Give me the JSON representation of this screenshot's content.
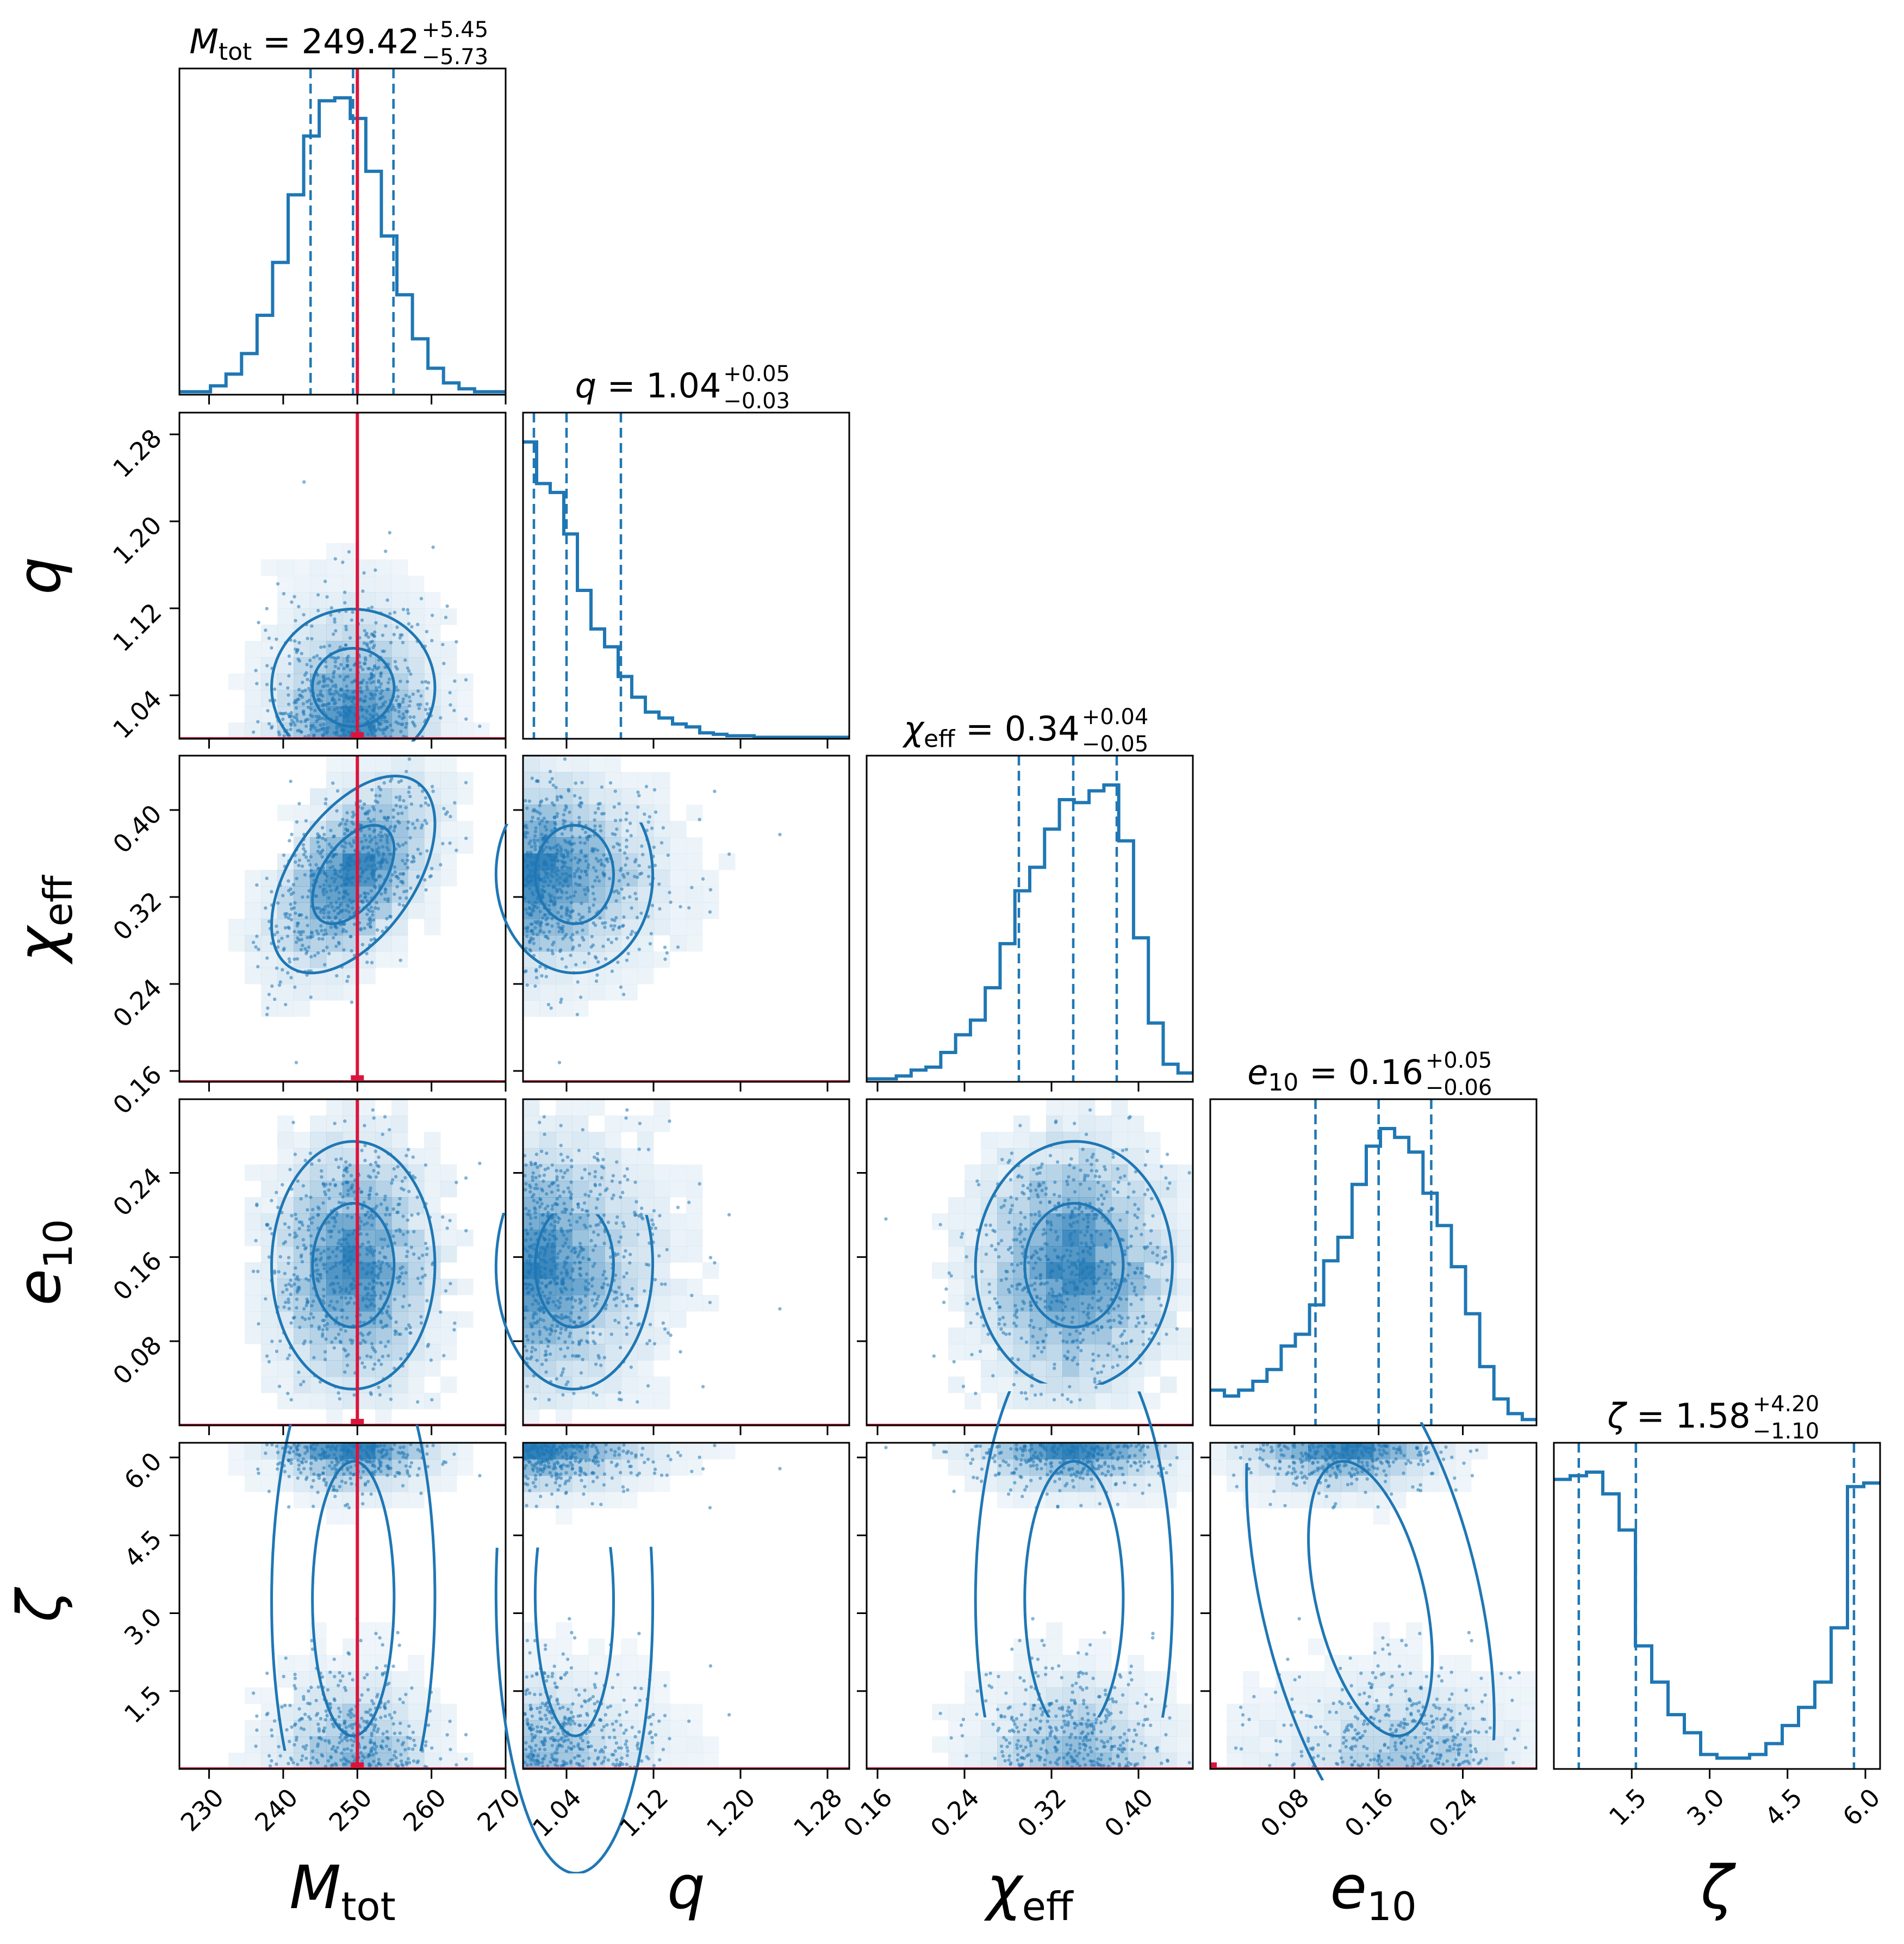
{
  "chart_data": {
    "type": "corner",
    "title": "",
    "params": [
      {
        "key": "mtot",
        "symbol": "M",
        "sub": "tot",
        "italic": true,
        "title_pre": "M",
        "title_sub": "tot",
        "title_value": "249.42",
        "title_plus": "+5.45",
        "title_minus": "−5.73",
        "range": [
          226,
          270
        ],
        "ticks": [
          230,
          240,
          250,
          260,
          270
        ],
        "tick_labels": [
          "230",
          "240",
          "250",
          "260",
          "270"
        ],
        "median": 249.42,
        "q16": 243.69,
        "q84": 254.87,
        "truth": 250,
        "hist": [
          1,
          1,
          3,
          7,
          14,
          27,
          45,
          68,
          88,
          100,
          101,
          94,
          76,
          54,
          34,
          19,
          9,
          4,
          2,
          1,
          1
        ]
      },
      {
        "key": "q",
        "symbol": "q",
        "sub": "",
        "italic": true,
        "title_pre": "q",
        "title_sub": "",
        "title_value": "1.04",
        "title_plus": "+0.05",
        "title_minus": "−0.03",
        "range": [
          1.0,
          1.3
        ],
        "ticks": [
          1.04,
          1.12,
          1.2,
          1.28
        ],
        "tick_labels": [
          "1.04",
          "1.12",
          "1.20",
          "1.28"
        ],
        "median": 1.04,
        "q16": 1.01,
        "q84": 1.09,
        "truth": null,
        "hist": [
          100,
          86,
          83,
          69,
          50,
          37,
          31,
          21,
          14,
          9,
          7,
          5,
          4,
          2,
          1.5,
          1,
          1,
          0.5,
          0.5,
          0.5,
          0.5,
          0.5,
          0.5,
          0.5
        ]
      },
      {
        "key": "chi",
        "symbol": "χ",
        "sub": "eff",
        "italic": true,
        "title_pre": "χ",
        "title_sub": "eff",
        "title_value": "0.34",
        "title_plus": "+0.04",
        "title_minus": "−0.05",
        "range": [
          0.15,
          0.45
        ],
        "ticks": [
          0.16,
          0.24,
          0.32,
          0.4
        ],
        "tick_labels": [
          "0.16",
          "0.24",
          "0.32",
          "0.40"
        ],
        "median": 0.34,
        "q16": 0.29,
        "q84": 0.38,
        "truth": null,
        "hist": [
          1,
          1,
          2,
          4,
          5,
          10,
          16,
          21,
          32,
          47,
          65,
          73,
          86,
          96,
          95,
          99,
          101,
          82,
          49,
          20,
          6,
          3
        ]
      },
      {
        "key": "e10",
        "symbol": "e",
        "sub": "10",
        "italic": true,
        "title_pre": "e",
        "title_sub": "10",
        "title_value": "0.16",
        "title_plus": "+0.05",
        "title_minus": "−0.06",
        "range": [
          0.0,
          0.31
        ],
        "ticks": [
          0.08,
          0.16,
          0.24
        ],
        "tick_labels": [
          "0.08",
          "0.16",
          "0.24"
        ],
        "median": 0.16,
        "q16": 0.1,
        "q84": 0.21,
        "truth": 0.0,
        "hist": [
          12,
          10,
          12,
          15,
          19,
          27,
          31,
          41,
          56,
          64,
          82,
          95,
          101,
          98,
          93,
          79,
          68,
          54,
          38,
          20,
          9,
          4,
          2
        ]
      },
      {
        "key": "zeta",
        "symbol": "ζ",
        "sub": "",
        "italic": true,
        "title_pre": "ζ",
        "title_sub": "",
        "title_value": "1.58",
        "title_plus": "+4.20",
        "title_minus": "−1.10",
        "range": [
          0.0,
          6.283
        ],
        "ticks": [
          1.5,
          3.0,
          4.5,
          6.0
        ],
        "tick_labels": [
          "1.5",
          "3.0",
          "4.5",
          "6.0"
        ],
        "median": 1.58,
        "q16": 0.48,
        "q84": 5.78,
        "truth": 0.0,
        "hist": [
          80,
          81,
          82,
          76,
          66,
          34,
          24,
          15,
          10,
          4,
          3,
          3,
          4,
          7,
          12,
          17,
          24,
          39,
          78,
          79
        ]
      }
    ],
    "pair_panels": [
      {
        "row": 1,
        "col": 0,
        "truth_line": true
      },
      {
        "row": 2,
        "col": 0,
        "truth_line": true
      },
      {
        "row": 2,
        "col": 1,
        "truth_line": false
      },
      {
        "row": 3,
        "col": 0,
        "truth_line": true
      },
      {
        "row": 3,
        "col": 1,
        "truth_line": false
      },
      {
        "row": 3,
        "col": 2,
        "truth_line": false
      },
      {
        "row": 4,
        "col": 0,
        "truth_line": true
      },
      {
        "row": 4,
        "col": 1,
        "truth_line": false
      },
      {
        "row": 4,
        "col": 2,
        "truth_line": false
      },
      {
        "row": 4,
        "col": 3,
        "truth_line": false
      }
    ],
    "colors": {
      "posterior": "#1f77b4",
      "truth": "#dc143c",
      "frame": "#000000"
    },
    "levels": [
      "0.39",
      "0.86"
    ]
  }
}
